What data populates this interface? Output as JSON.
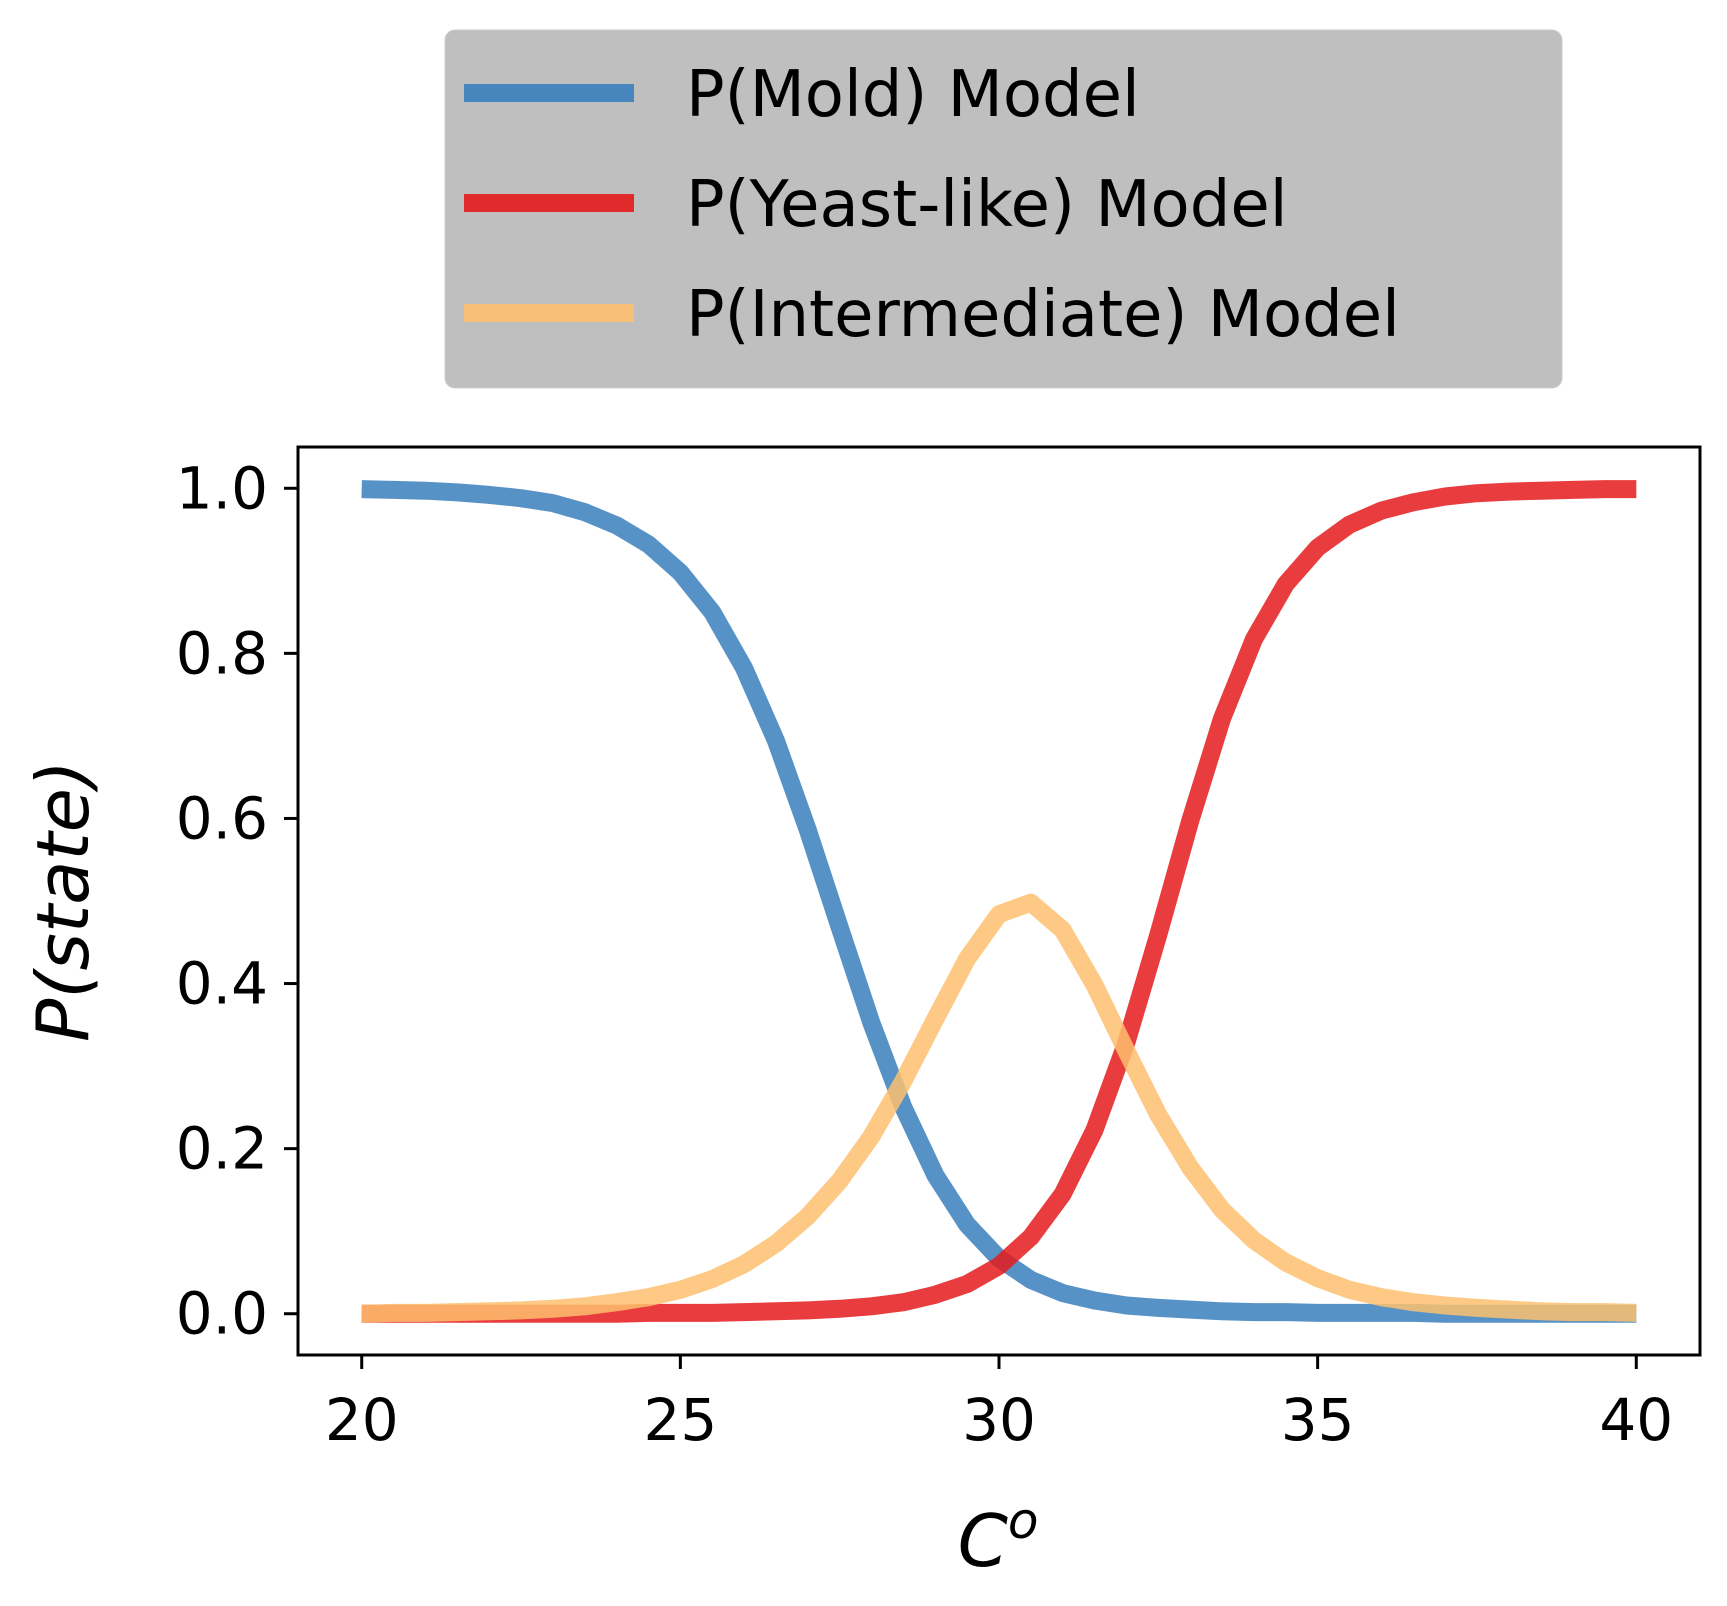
{
  "chart_data": {
    "type": "line",
    "title": "",
    "xlabel": "C",
    "xlabel_superscript": "o",
    "ylabel": "P(state)",
    "xlim": [
      19,
      41
    ],
    "ylim": [
      -0.05,
      1.05
    ],
    "xticks": [
      20,
      25,
      30,
      35,
      40
    ],
    "yticks": [
      0.0,
      0.2,
      0.4,
      0.6,
      0.8,
      1.0
    ],
    "xtick_labels": [
      "20",
      "25",
      "30",
      "35",
      "40"
    ],
    "ytick_labels": [
      "0.0",
      "0.2",
      "0.4",
      "0.6",
      "0.8",
      "1.0"
    ],
    "grid": false,
    "legend_placement": "top (above plot)",
    "x": [
      20,
      20.5,
      21,
      21.5,
      22,
      22.5,
      23,
      23.5,
      24,
      24.5,
      25,
      25.5,
      26,
      26.5,
      27,
      27.5,
      28,
      28.5,
      29,
      29.5,
      30,
      30.5,
      31,
      31.5,
      32,
      32.5,
      33,
      33.5,
      34,
      34.5,
      35,
      35.5,
      36,
      36.5,
      37,
      37.5,
      38,
      38.5,
      39,
      39.5,
      40
    ],
    "series": [
      {
        "name": "P(Mold) Model",
        "color": "#3a7fbd",
        "values": [
          0.999,
          0.998,
          0.997,
          0.995,
          0.992,
          0.988,
          0.982,
          0.971,
          0.955,
          0.932,
          0.898,
          0.85,
          0.782,
          0.694,
          0.586,
          0.468,
          0.352,
          0.25,
          0.168,
          0.108,
          0.067,
          0.041,
          0.025,
          0.016,
          0.01,
          0.007,
          0.005,
          0.003,
          0.002,
          0.002,
          0.001,
          0.001,
          0.001,
          0.001,
          0.0,
          0.0,
          0.0,
          0.0,
          0.0,
          0.0,
          0.0
        ]
      },
      {
        "name": "P(Yeast-like) Model",
        "color": "#e41a1c",
        "values": [
          0.0,
          0.0,
          0.0,
          0.0,
          0.0,
          0.0,
          0.0,
          0.0,
          0.0,
          0.001,
          0.001,
          0.001,
          0.002,
          0.003,
          0.004,
          0.006,
          0.009,
          0.014,
          0.023,
          0.036,
          0.058,
          0.093,
          0.145,
          0.223,
          0.329,
          0.459,
          0.597,
          0.721,
          0.817,
          0.884,
          0.928,
          0.956,
          0.973,
          0.983,
          0.99,
          0.994,
          0.996,
          0.997,
          0.998,
          0.999,
          0.999
        ]
      },
      {
        "name": "P(Intermediate) Model",
        "color": "#fdbf6f",
        "values": [
          0.0,
          0.001,
          0.001,
          0.002,
          0.003,
          0.004,
          0.006,
          0.009,
          0.014,
          0.02,
          0.029,
          0.042,
          0.06,
          0.085,
          0.118,
          0.161,
          0.215,
          0.282,
          0.357,
          0.43,
          0.484,
          0.498,
          0.465,
          0.398,
          0.318,
          0.241,
          0.177,
          0.126,
          0.089,
          0.062,
          0.043,
          0.029,
          0.02,
          0.014,
          0.01,
          0.007,
          0.005,
          0.003,
          0.002,
          0.002,
          0.001
        ]
      }
    ]
  }
}
